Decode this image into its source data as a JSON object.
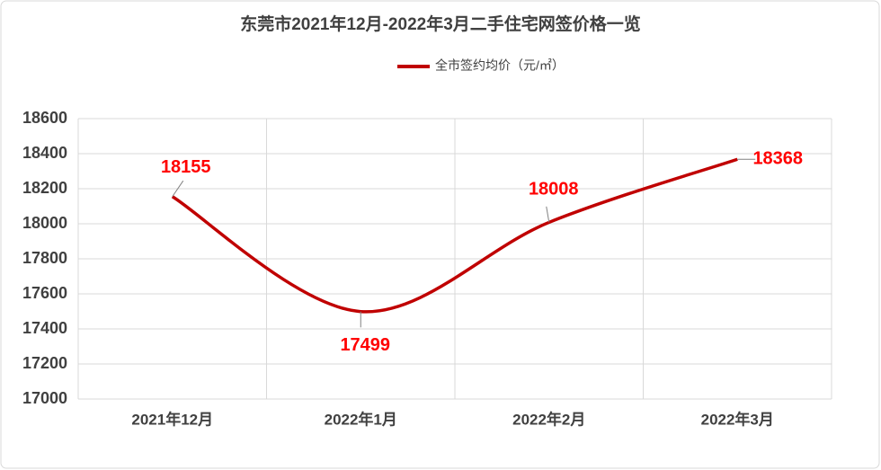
{
  "chart_data": {
    "type": "line",
    "title": "东莞市2021年12月-2022年3月二手住宅网签价格一览",
    "categories": [
      "2021年12月",
      "2022年1月",
      "2022年2月",
      "2022年3月"
    ],
    "series": [
      {
        "name": "全市签约均价（元/㎡）",
        "color": "#c00000",
        "values": [
          18155,
          17499,
          18008,
          18368
        ]
      }
    ],
    "ylim": [
      17000,
      18600
    ],
    "yticks": [
      17000,
      17200,
      17400,
      17600,
      17800,
      18000,
      18200,
      18400,
      18600
    ],
    "grid": true,
    "legend": "top",
    "smooth": true,
    "label_color": "#ff0000"
  }
}
